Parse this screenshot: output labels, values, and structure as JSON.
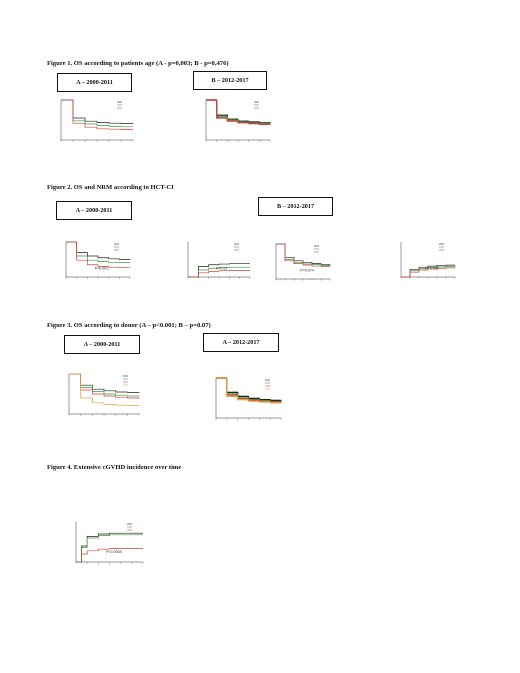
{
  "fig1": {
    "title": "Figure 1. OS according to patients age (A - p=0,003; B - p=0,476)",
    "panel_a_label": "A – 2000-2011",
    "panel_b_label": "B – 2012-2017"
  },
  "fig2": {
    "title": "Figure 2. OS and NRM according to HCT-CI",
    "panel_a_label": "A – 2000-2011",
    "panel_b_label": "B – 2012-2017",
    "p1": "P<0.001",
    "p2": "P=0.02",
    "p3": "P=0.074",
    "p4": "P=0.052"
  },
  "fig3": {
    "title": "Figure 3. OS according to donor (A – p<0.001; B – p=0.07)",
    "panel_a_label": "A – 2000-2011",
    "panel_b_label": "A – 2012-2017"
  },
  "fig4": {
    "title": "Figure 4. Extensive cGVHD incidence over time",
    "p1": "P<0.0004"
  },
  "colors": {
    "black": "#222222",
    "green": "#3a9a3a",
    "red": "#d04040",
    "orange": "#e8a040",
    "blue": "#3a6ad0",
    "cyan": "#30b0b0"
  },
  "chart_data": [
    {
      "type": "line",
      "panel": "fig1-A",
      "series": [
        {
          "x": [
            0,
            1,
            2,
            3,
            4,
            5,
            6
          ],
          "values": [
            1.0,
            0.55,
            0.47,
            0.44,
            0.42,
            0.41,
            0.4
          ]
        },
        {
          "x": [
            0,
            1,
            2,
            3,
            4,
            5,
            6
          ],
          "values": [
            1.0,
            0.48,
            0.4,
            0.36,
            0.34,
            0.33,
            0.33
          ]
        },
        {
          "x": [
            0,
            1,
            2,
            3,
            4,
            5,
            6
          ],
          "values": [
            1.0,
            0.42,
            0.32,
            0.28,
            0.27,
            0.26,
            0.26
          ]
        }
      ]
    },
    {
      "type": "line",
      "panel": "fig1-B",
      "series": [
        {
          "x": [
            0,
            1,
            2,
            3,
            4,
            5,
            6
          ],
          "values": [
            1.0,
            0.62,
            0.52,
            0.47,
            0.45,
            0.43,
            0.42
          ]
        },
        {
          "x": [
            0,
            1,
            2,
            3,
            4,
            5,
            6
          ],
          "values": [
            1.0,
            0.58,
            0.5,
            0.45,
            0.43,
            0.41,
            0.4
          ]
        },
        {
          "x": [
            0,
            1,
            2,
            3,
            4,
            5,
            6
          ],
          "values": [
            1.0,
            0.55,
            0.47,
            0.43,
            0.41,
            0.39,
            0.38
          ]
        }
      ]
    },
    {
      "type": "line",
      "panel": "fig2-A-OS",
      "series": [
        {
          "x": [
            0,
            1,
            2,
            3,
            4,
            5,
            6
          ],
          "values": [
            1.0,
            0.7,
            0.6,
            0.55,
            0.52,
            0.5,
            0.49
          ]
        },
        {
          "x": [
            0,
            1,
            2,
            3,
            4,
            5,
            6
          ],
          "values": [
            1.0,
            0.6,
            0.48,
            0.44,
            0.42,
            0.41,
            0.4
          ]
        },
        {
          "x": [
            0,
            1,
            2,
            3,
            4,
            5,
            6
          ],
          "values": [
            1.0,
            0.48,
            0.35,
            0.3,
            0.28,
            0.27,
            0.27
          ]
        }
      ]
    },
    {
      "type": "line",
      "panel": "fig2-A-NRM",
      "series": [
        {
          "x": [
            0,
            1,
            2,
            3,
            4,
            5,
            6
          ],
          "values": [
            0,
            0.3,
            0.35,
            0.37,
            0.38,
            0.38,
            0.38
          ]
        },
        {
          "x": [
            0,
            1,
            2,
            3,
            4,
            5,
            6
          ],
          "values": [
            0,
            0.2,
            0.25,
            0.27,
            0.28,
            0.28,
            0.28
          ]
        },
        {
          "x": [
            0,
            1,
            2,
            3,
            4,
            5,
            6
          ],
          "values": [
            0,
            0.12,
            0.16,
            0.18,
            0.19,
            0.19,
            0.19
          ]
        }
      ]
    },
    {
      "type": "line",
      "panel": "fig2-B-OS",
      "series": [
        {
          "x": [
            0,
            1,
            2,
            3,
            4,
            5,
            6
          ],
          "values": [
            1.0,
            0.62,
            0.52,
            0.47,
            0.44,
            0.42,
            0.41
          ]
        },
        {
          "x": [
            0,
            1,
            2,
            3,
            4,
            5,
            6
          ],
          "values": [
            1.0,
            0.56,
            0.47,
            0.43,
            0.41,
            0.39,
            0.38
          ]
        },
        {
          "x": [
            0,
            1,
            2,
            3,
            4,
            5,
            6
          ],
          "values": [
            1.0,
            0.52,
            0.44,
            0.4,
            0.37,
            0.36,
            0.35
          ]
        }
      ]
    },
    {
      "type": "line",
      "panel": "fig2-B-NRM",
      "series": [
        {
          "x": [
            0,
            1,
            2,
            3,
            4,
            5,
            6
          ],
          "values": [
            0,
            0.22,
            0.28,
            0.31,
            0.33,
            0.34,
            0.35
          ]
        },
        {
          "x": [
            0,
            1,
            2,
            3,
            4,
            5,
            6
          ],
          "values": [
            0,
            0.18,
            0.24,
            0.27,
            0.29,
            0.3,
            0.31
          ]
        },
        {
          "x": [
            0,
            1,
            2,
            3,
            4,
            5,
            6
          ],
          "values": [
            0,
            0.14,
            0.2,
            0.23,
            0.25,
            0.26,
            0.27
          ]
        }
      ]
    },
    {
      "type": "line",
      "panel": "fig3-A",
      "series": [
        {
          "x": [
            0,
            1,
            2,
            3,
            4,
            5,
            6
          ],
          "values": [
            1.0,
            0.72,
            0.62,
            0.58,
            0.55,
            0.54,
            0.53
          ]
        },
        {
          "x": [
            0,
            1,
            2,
            3,
            4,
            5,
            6
          ],
          "values": [
            1.0,
            0.66,
            0.56,
            0.5,
            0.47,
            0.45,
            0.44
          ]
        },
        {
          "x": [
            0,
            1,
            2,
            3,
            4,
            5,
            6
          ],
          "values": [
            1.0,
            0.6,
            0.5,
            0.45,
            0.42,
            0.4,
            0.38
          ]
        },
        {
          "x": [
            0,
            1,
            2,
            3,
            4,
            5,
            6
          ],
          "values": [
            1.0,
            0.4,
            0.28,
            0.24,
            0.22,
            0.21,
            0.2
          ]
        }
      ]
    },
    {
      "type": "line",
      "panel": "fig3-B",
      "series": [
        {
          "x": [
            0,
            1,
            2,
            3,
            4,
            5,
            6
          ],
          "values": [
            1.0,
            0.64,
            0.54,
            0.49,
            0.46,
            0.44,
            0.43
          ]
        },
        {
          "x": [
            0,
            1,
            2,
            3,
            4,
            5,
            6
          ],
          "values": [
            1.0,
            0.6,
            0.5,
            0.46,
            0.43,
            0.41,
            0.4
          ]
        },
        {
          "x": [
            0,
            1,
            2,
            3,
            4,
            5,
            6
          ],
          "values": [
            1.0,
            0.57,
            0.48,
            0.44,
            0.41,
            0.4,
            0.39
          ]
        },
        {
          "x": [
            0,
            1,
            2,
            3,
            4,
            5,
            6
          ],
          "values": [
            1.0,
            0.54,
            0.46,
            0.42,
            0.4,
            0.38,
            0.37
          ]
        }
      ]
    },
    {
      "type": "line",
      "panel": "fig4",
      "series": [
        {
          "x": [
            0,
            0.5,
            1,
            2,
            3,
            4,
            5,
            6
          ],
          "values": [
            0,
            0.2,
            0.32,
            0.35,
            0.36,
            0.36,
            0.36,
            0.36
          ]
        },
        {
          "x": [
            0,
            0.5,
            1,
            2,
            3,
            4,
            5,
            6
          ],
          "values": [
            0,
            0.18,
            0.3,
            0.33,
            0.34,
            0.34,
            0.34,
            0.34
          ]
        },
        {
          "x": [
            0,
            0.5,
            1,
            2,
            3,
            4,
            5,
            6
          ],
          "values": [
            0,
            0.1,
            0.14,
            0.16,
            0.17,
            0.17,
            0.17,
            0.17
          ]
        }
      ]
    }
  ]
}
